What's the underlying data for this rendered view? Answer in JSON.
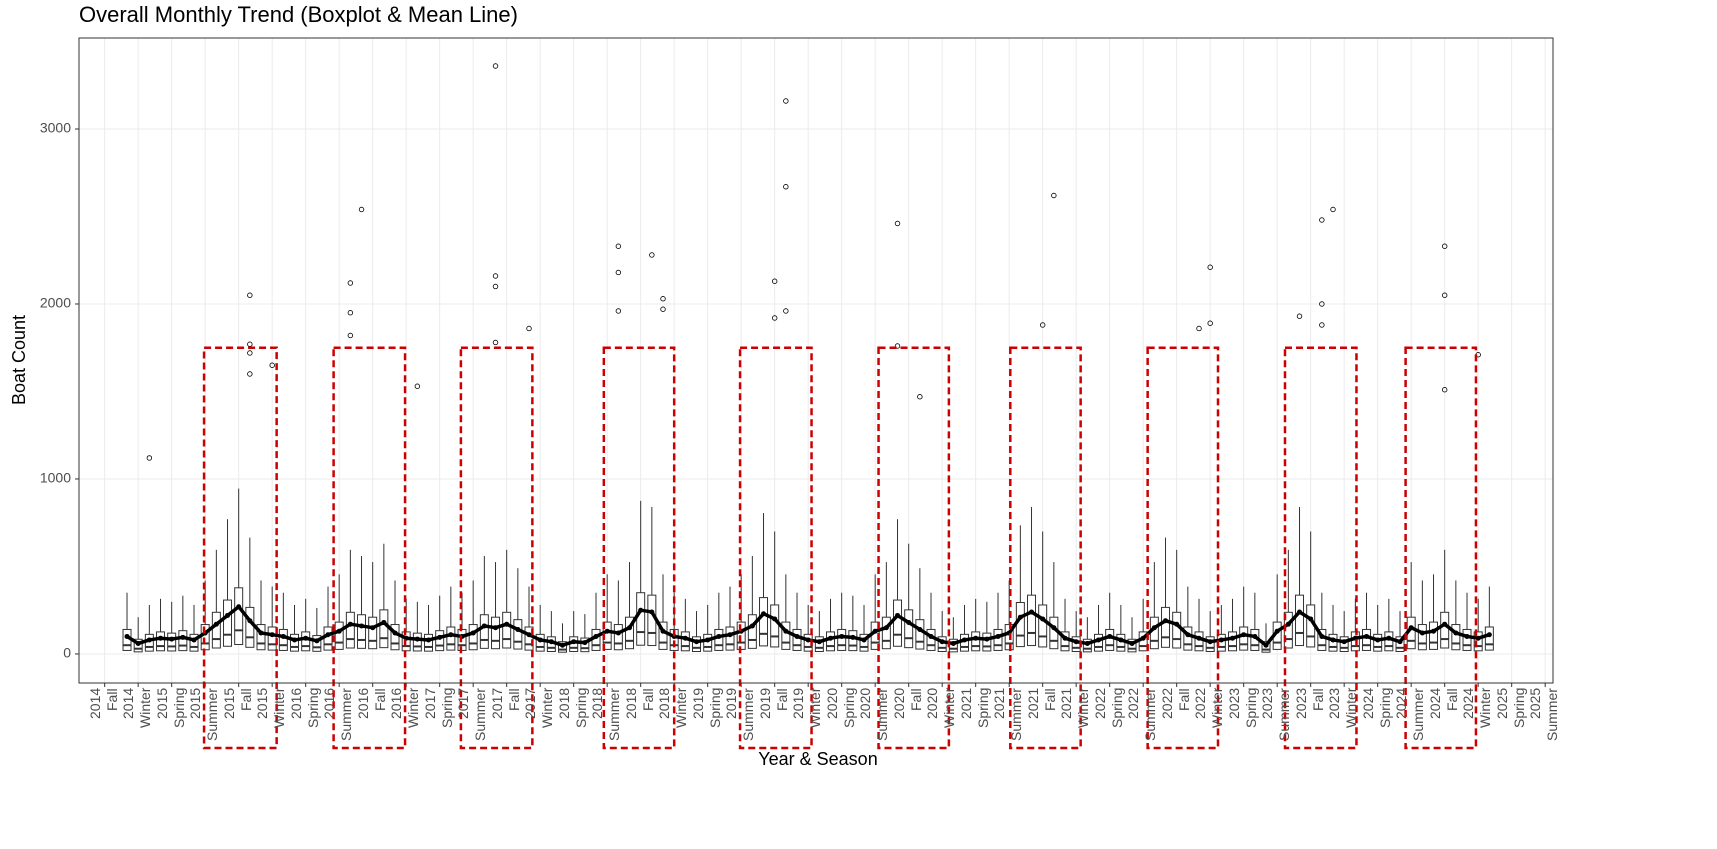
{
  "chart_data": {
    "type": "boxplot",
    "title": "Overall Monthly Trend (Boxplot & Mean Line)",
    "x_label": "Year & Season",
    "y_label": "Boat Count",
    "xlim": [
      -1.3,
      130.7
    ],
    "xticks": [
      {
        "value": 1,
        "label": "2014\nFall"
      },
      {
        "value": 4,
        "label": "2014\nWinter"
      },
      {
        "value": 7,
        "label": "2015\nSpring"
      },
      {
        "value": 10,
        "label": "2015\nSummer"
      },
      {
        "value": 13,
        "label": "2015\nFall"
      },
      {
        "value": 16,
        "label": "2015\nWinter"
      },
      {
        "value": 19,
        "label": "2016\nSpring"
      },
      {
        "value": 22,
        "label": "2016\nSummer"
      },
      {
        "value": 25,
        "label": "2016\nFall"
      },
      {
        "value": 28,
        "label": "2016\nWinter"
      },
      {
        "value": 31,
        "label": "2017\nSpring"
      },
      {
        "value": 34,
        "label": "2017\nSummer"
      },
      {
        "value": 37,
        "label": "2017\nFall"
      },
      {
        "value": 40,
        "label": "2017\nWinter"
      },
      {
        "value": 43,
        "label": "2018\nSpring"
      },
      {
        "value": 46,
        "label": "2018\nSummer"
      },
      {
        "value": 49,
        "label": "2018\nFall"
      },
      {
        "value": 52,
        "label": "2018\nWinter"
      },
      {
        "value": 55,
        "label": "2019\nSpring"
      },
      {
        "value": 58,
        "label": "2019\nSummer"
      },
      {
        "value": 61,
        "label": "2019\nFall"
      },
      {
        "value": 64,
        "label": "2019\nWinter"
      },
      {
        "value": 67,
        "label": "2020\nSpring"
      },
      {
        "value": 70,
        "label": "2020\nSummer"
      },
      {
        "value": 73,
        "label": "2020\nFall"
      },
      {
        "value": 76,
        "label": "2020\nWinter"
      },
      {
        "value": 79,
        "label": "2021\nSpring"
      },
      {
        "value": 82,
        "label": "2021\nSummer"
      },
      {
        "value": 85,
        "label": "2021\nFall"
      },
      {
        "value": 88,
        "label": "2021\nWinter"
      },
      {
        "value": 91,
        "label": "2022\nSpring"
      },
      {
        "value": 94,
        "label": "2022\nSummer"
      },
      {
        "value": 97,
        "label": "2022\nFall"
      },
      {
        "value": 100,
        "label": "2022\nWinter"
      },
      {
        "value": 103,
        "label": "2023\nSpring"
      },
      {
        "value": 106,
        "label": "2023\nSummer"
      },
      {
        "value": 109,
        "label": "2023\nFall"
      },
      {
        "value": 112,
        "label": "2023\nWinter"
      },
      {
        "value": 115,
        "label": "2024\nSpring"
      },
      {
        "value": 118,
        "label": "2024\nSummer"
      },
      {
        "value": 121,
        "label": "2024\nFall"
      },
      {
        "value": 124,
        "label": "2024\nWinter"
      },
      {
        "value": 127,
        "label": "2025\nSpring"
      },
      {
        "value": 130,
        "label": "2025\nSummer"
      }
    ],
    "ylim": [
      -166,
      3520
    ],
    "yticks": [
      0,
      1000,
      2000,
      3000
    ],
    "grid": true,
    "box_color": "#333333",
    "mean_color": "#000000",
    "boxes": {
      "x": [
        3,
        4,
        5,
        6,
        7,
        8,
        9,
        10,
        11,
        12,
        13,
        14,
        15,
        16,
        17,
        18,
        19,
        20,
        21,
        22,
        23,
        24,
        25,
        26,
        27,
        28,
        29,
        30,
        31,
        32,
        33,
        34,
        35,
        36,
        37,
        38,
        39,
        40,
        41,
        42,
        43,
        44,
        45,
        46,
        47,
        48,
        49,
        50,
        51,
        52,
        53,
        54,
        55,
        56,
        57,
        58,
        59,
        60,
        61,
        62,
        63,
        64,
        65,
        66,
        67,
        68,
        69,
        70,
        71,
        72,
        73,
        74,
        75,
        76,
        77,
        78,
        79,
        80,
        81,
        82,
        83,
        84,
        85,
        86,
        87,
        88,
        89,
        90,
        91,
        92,
        93,
        94,
        95,
        96,
        97,
        98,
        99,
        100,
        101,
        102,
        103,
        104,
        105,
        106,
        107,
        108,
        109,
        110,
        111,
        112,
        113,
        114,
        115,
        116,
        117,
        118,
        119,
        120,
        121,
        122,
        123,
        124,
        125
      ],
      "q1": [
        20,
        12,
        16,
        18,
        17,
        19,
        16,
        24,
        34,
        44,
        54,
        38,
        24,
        22,
        20,
        16,
        18,
        15,
        22,
        26,
        34,
        32,
        30,
        36,
        24,
        18,
        17,
        16,
        19,
        22,
        20,
        24,
        32,
        30,
        34,
        28,
        22,
        16,
        14,
        10,
        14,
        13,
        20,
        26,
        24,
        30,
        50,
        48,
        26,
        20,
        18,
        14,
        16,
        20,
        22,
        26,
        32,
        46,
        40,
        26,
        20,
        16,
        14,
        18,
        20,
        19,
        16,
        26,
        30,
        44,
        36,
        28,
        20,
        14,
        12,
        16,
        18,
        17,
        20,
        24,
        42,
        48,
        40,
        30,
        18,
        14,
        12,
        16,
        20,
        16,
        12,
        18,
        30,
        38,
        34,
        22,
        18,
        14,
        16,
        18,
        22,
        20,
        10,
        26,
        34,
        48,
        40,
        20,
        16,
        14,
        18,
        20,
        16,
        18,
        14,
        30,
        24,
        26,
        34,
        24,
        20,
        18,
        22
      ],
      "median": [
        50,
        30,
        40,
        45,
        43,
        48,
        40,
        60,
        85,
        110,
        135,
        95,
        60,
        55,
        50,
        40,
        45,
        38,
        55,
        65,
        85,
        80,
        75,
        90,
        60,
        45,
        43,
        40,
        48,
        55,
        50,
        60,
        80,
        75,
        85,
        70,
        55,
        40,
        35,
        25,
        35,
        33,
        50,
        65,
        60,
        75,
        125,
        120,
        65,
        50,
        45,
        35,
        40,
        50,
        55,
        65,
        80,
        115,
        100,
        65,
        50,
        40,
        35,
        45,
        50,
        48,
        40,
        65,
        75,
        110,
        90,
        70,
        50,
        35,
        30,
        40,
        45,
        43,
        50,
        60,
        105,
        120,
        100,
        75,
        45,
        35,
        30,
        40,
        50,
        40,
        30,
        45,
        75,
        95,
        85,
        55,
        45,
        35,
        40,
        45,
        55,
        50,
        25,
        65,
        85,
        120,
        100,
        50,
        40,
        35,
        45,
        50,
        40,
        45,
        35,
        75,
        60,
        65,
        85,
        60,
        50,
        45,
        55
      ],
      "q3": [
        140,
        84,
        112,
        126,
        119,
        133,
        112,
        168,
        238,
        308,
        378,
        266,
        168,
        154,
        140,
        112,
        126,
        105,
        154,
        182,
        238,
        224,
        210,
        252,
        168,
        126,
        119,
        112,
        133,
        154,
        140,
        168,
        224,
        210,
        238,
        196,
        154,
        112,
        98,
        70,
        98,
        91,
        140,
        182,
        168,
        210,
        350,
        336,
        182,
        140,
        126,
        98,
        112,
        140,
        154,
        182,
        224,
        322,
        280,
        182,
        140,
        112,
        98,
        126,
        140,
        133,
        112,
        182,
        210,
        308,
        252,
        196,
        140,
        98,
        84,
        112,
        126,
        119,
        140,
        168,
        294,
        336,
        280,
        210,
        126,
        98,
        84,
        112,
        140,
        112,
        84,
        126,
        210,
        266,
        238,
        154,
        126,
        98,
        112,
        126,
        154,
        140,
        70,
        182,
        238,
        336,
        280,
        140,
        112,
        98,
        126,
        140,
        112,
        126,
        98,
        210,
        168,
        182,
        238,
        168,
        140,
        126,
        154
      ],
      "whisker_high": [
        350,
        210,
        280,
        315,
        298,
        333,
        280,
        420,
        595,
        770,
        945,
        665,
        420,
        385,
        350,
        280,
        315,
        263,
        385,
        455,
        595,
        560,
        525,
        630,
        420,
        315,
        298,
        280,
        333,
        385,
        350,
        420,
        560,
        525,
        595,
        490,
        385,
        280,
        245,
        175,
        245,
        228,
        350,
        455,
        420,
        525,
        875,
        840,
        455,
        350,
        315,
        245,
        280,
        350,
        385,
        455,
        560,
        805,
        700,
        455,
        350,
        280,
        245,
        315,
        350,
        333,
        280,
        455,
        525,
        770,
        630,
        490,
        350,
        245,
        210,
        280,
        315,
        298,
        350,
        420,
        735,
        840,
        700,
        525,
        315,
        245,
        210,
        280,
        350,
        280,
        210,
        315,
        525,
        665,
        595,
        385,
        315,
        245,
        280,
        315,
        385,
        350,
        175,
        455,
        595,
        840,
        700,
        350,
        280,
        245,
        315,
        350,
        280,
        315,
        245,
        525,
        420,
        455,
        595,
        420,
        350,
        315,
        385
      ],
      "mean": [
        100,
        60,
        80,
        90,
        85,
        95,
        80,
        120,
        170,
        220,
        270,
        190,
        120,
        110,
        100,
        80,
        90,
        75,
        110,
        130,
        170,
        160,
        150,
        180,
        120,
        90,
        85,
        80,
        95,
        110,
        100,
        120,
        160,
        150,
        170,
        140,
        110,
        80,
        70,
        50,
        70,
        65,
        100,
        130,
        120,
        150,
        250,
        240,
        130,
        100,
        90,
        70,
        80,
        100,
        110,
        130,
        160,
        230,
        200,
        130,
        100,
        80,
        70,
        90,
        100,
        95,
        80,
        130,
        150,
        220,
        180,
        140,
        100,
        70,
        60,
        80,
        90,
        85,
        100,
        120,
        210,
        240,
        200,
        150,
        90,
        70,
        60,
        80,
        100,
        80,
        60,
        90,
        150,
        190,
        170,
        110,
        90,
        70,
        80,
        90,
        110,
        100,
        50,
        130,
        170,
        240,
        200,
        100,
        80,
        70,
        90,
        100,
        80,
        90,
        70,
        150,
        120,
        130,
        170,
        120,
        100,
        90,
        110
      ]
    },
    "outliers": {
      "x": [
        5,
        14,
        14,
        14,
        14,
        16,
        23,
        23,
        23,
        24,
        29,
        36,
        36,
        36,
        36,
        39,
        47,
        47,
        47,
        50,
        51,
        51,
        61,
        61,
        62,
        62,
        62,
        72,
        72,
        74,
        85,
        86,
        99,
        100,
        100,
        108,
        110,
        110,
        110,
        111,
        121,
        121,
        121,
        124
      ],
      "y": [
        1120,
        2050,
        1770,
        1720,
        1600,
        1650,
        1950,
        1820,
        2120,
        2540,
        1530,
        3360,
        2160,
        2100,
        1780,
        1860,
        2330,
        2180,
        1960,
        2280,
        2030,
        1970,
        2130,
        1920,
        3160,
        2670,
        1960,
        2460,
        1760,
        1470,
        1880,
        2620,
        1860,
        2210,
        1890,
        1930,
        2480,
        2000,
        1880,
        2540,
        2330,
        2050,
        1510,
        1710
      ]
    },
    "highlights": {
      "x": [
        [
          9.9,
          16.4
        ],
        [
          21.5,
          27.9
        ],
        [
          32.9,
          39.3
        ],
        [
          45.7,
          52.0
        ],
        [
          57.9,
          64.3
        ],
        [
          70.3,
          76.6
        ],
        [
          82.1,
          88.4
        ],
        [
          94.4,
          100.7
        ],
        [
          106.7,
          113.1
        ],
        [
          117.5,
          123.8
        ]
      ],
      "top": 1750,
      "color": "#cc0000"
    }
  }
}
